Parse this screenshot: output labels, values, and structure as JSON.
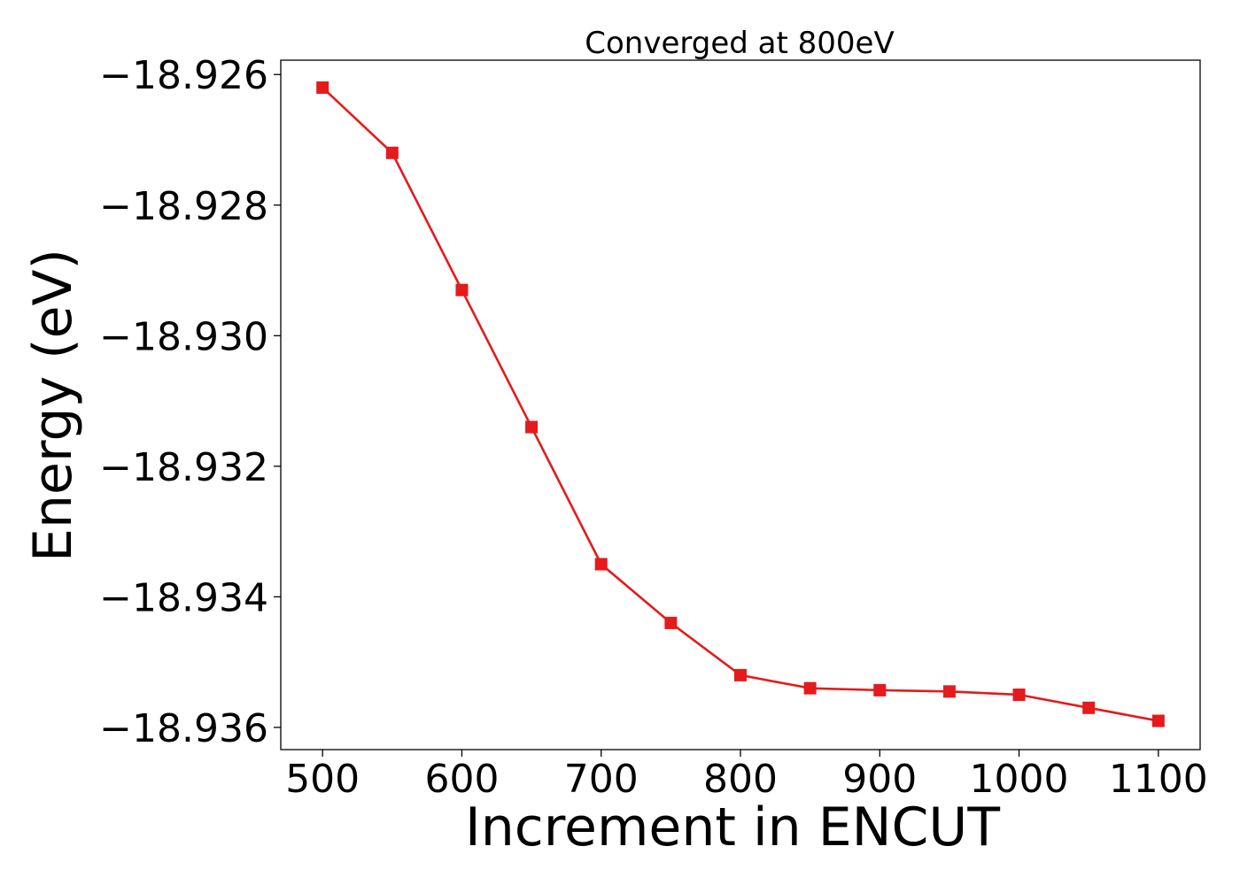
{
  "chart_data": {
    "type": "line",
    "title": "Converged at 800eV",
    "xlabel": "Increment in ENCUT",
    "ylabel": "Energy (eV)",
    "x": [
      500,
      550,
      600,
      650,
      700,
      750,
      800,
      850,
      900,
      950,
      1000,
      1050,
      1100
    ],
    "series": [
      {
        "values": [
          -18.9262,
          -18.9272,
          -18.9293,
          -18.9314,
          -18.9335,
          -18.9344,
          -18.9352,
          -18.9354,
          -18.93543,
          -18.93545,
          -18.9355,
          -18.9357,
          -18.9359
        ],
        "color": "#e41a1c",
        "marker": "square"
      }
    ],
    "xticks": [
      500,
      600,
      700,
      800,
      900,
      1000,
      1100
    ],
    "xtick_labels": [
      "500",
      "600",
      "700",
      "800",
      "900",
      "1000",
      "1100"
    ],
    "yticks": [
      -18.926,
      -18.928,
      -18.93,
      -18.932,
      -18.934,
      -18.936
    ],
    "ytick_labels": [
      "−18.926",
      "−18.928",
      "−18.930",
      "−18.932",
      "−18.934",
      "−18.936"
    ],
    "xlim": [
      470,
      1130
    ],
    "ylim": [
      -18.93634,
      -18.92578
    ],
    "grid": false
  }
}
